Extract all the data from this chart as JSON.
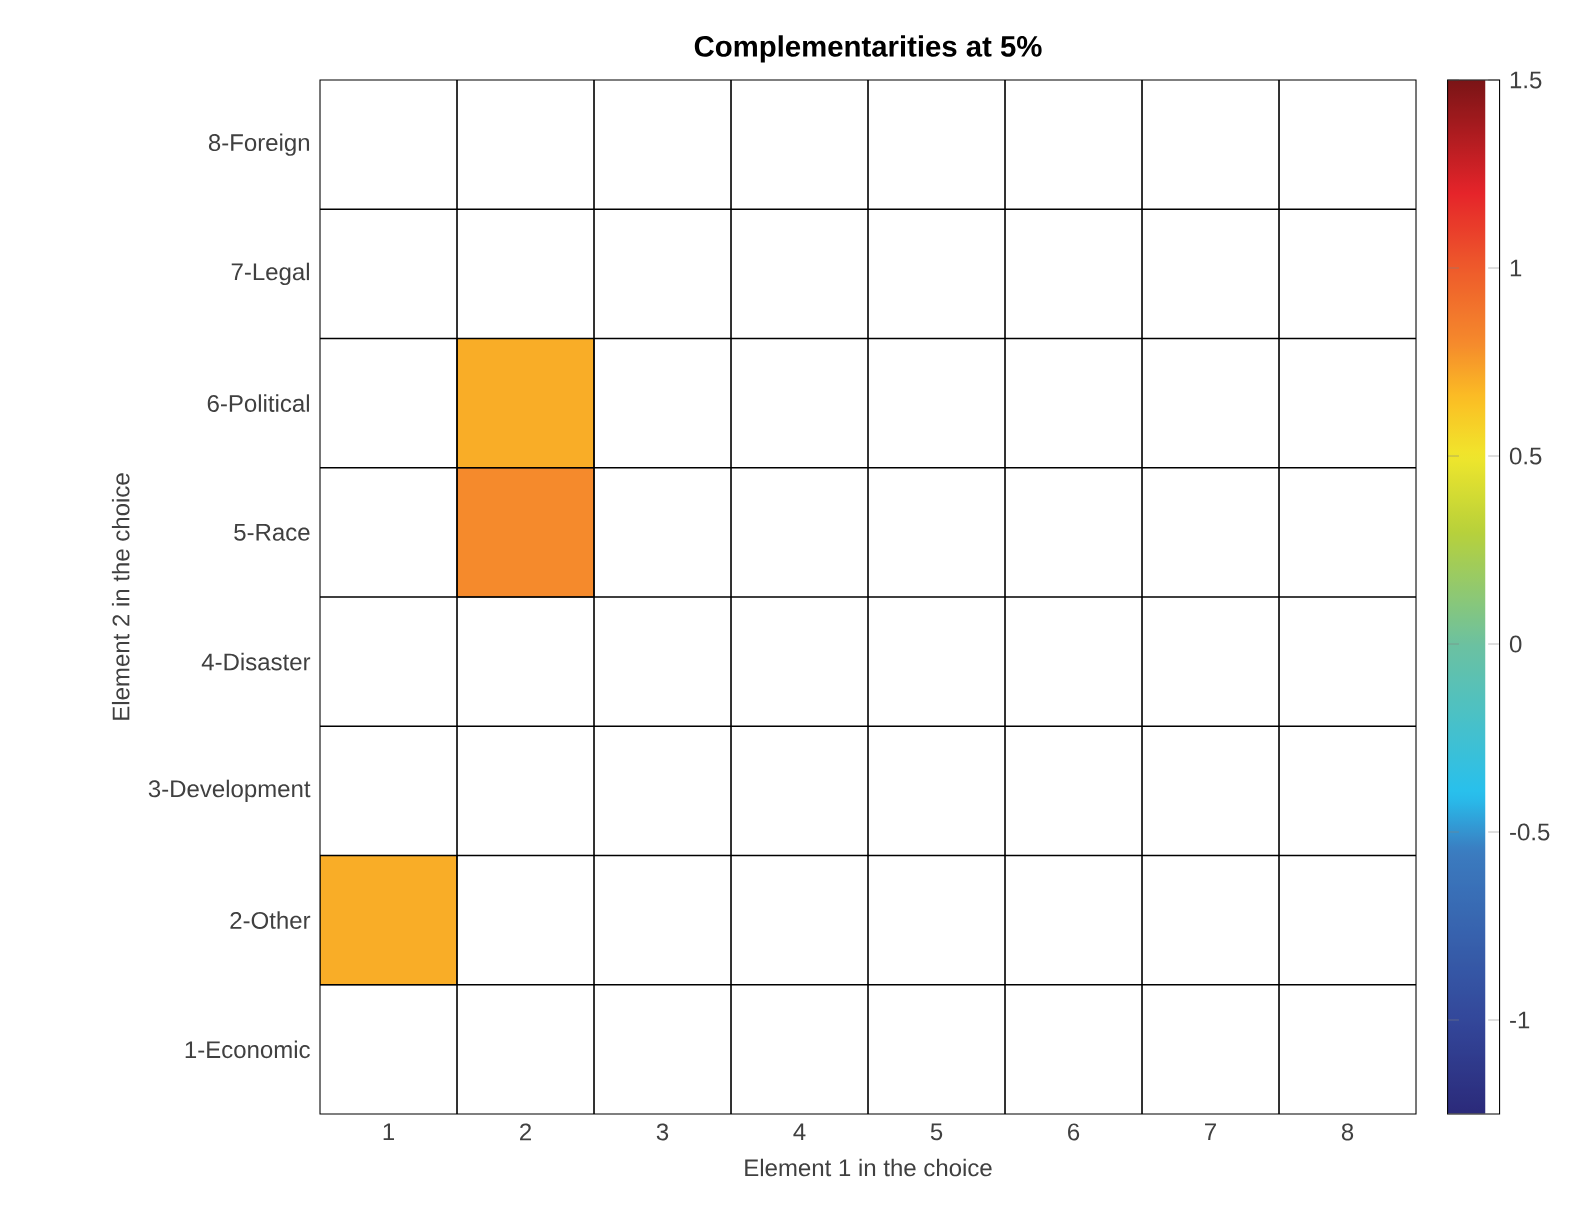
{
  "chart_data": {
    "type": "heatmap",
    "title": "Complementarities at 5%",
    "xlabel": "Element 1 in the choice",
    "ylabel": "Element 2 in the choice",
    "categories": [
      "1",
      "2",
      "3",
      "4",
      "5",
      "6",
      "7",
      "8"
    ],
    "y_categories": [
      "8-Foreign",
      "7-Legal",
      "6-Political",
      "5-Race",
      "4-Disaster",
      "3-Development",
      "2-Other",
      "1-Economic"
    ],
    "cells": [
      [
        null,
        null,
        null,
        null,
        null,
        null,
        null,
        null
      ],
      [
        null,
        null,
        null,
        null,
        null,
        null,
        null,
        null
      ],
      [
        null,
        0.7,
        null,
        null,
        null,
        null,
        null,
        null
      ],
      [
        null,
        0.8,
        null,
        null,
        null,
        null,
        null,
        null
      ],
      [
        null,
        null,
        null,
        null,
        null,
        null,
        null,
        null
      ],
      [
        null,
        null,
        null,
        null,
        null,
        null,
        null,
        null
      ],
      [
        0.7,
        null,
        null,
        null,
        null,
        null,
        null,
        null
      ],
      [
        null,
        null,
        null,
        null,
        null,
        null,
        null,
        null
      ]
    ],
    "clim": [
      -1.25,
      1.5
    ],
    "cticks": [
      -1,
      -0.5,
      0,
      0.5,
      1,
      1.5
    ],
    "grid": true
  }
}
